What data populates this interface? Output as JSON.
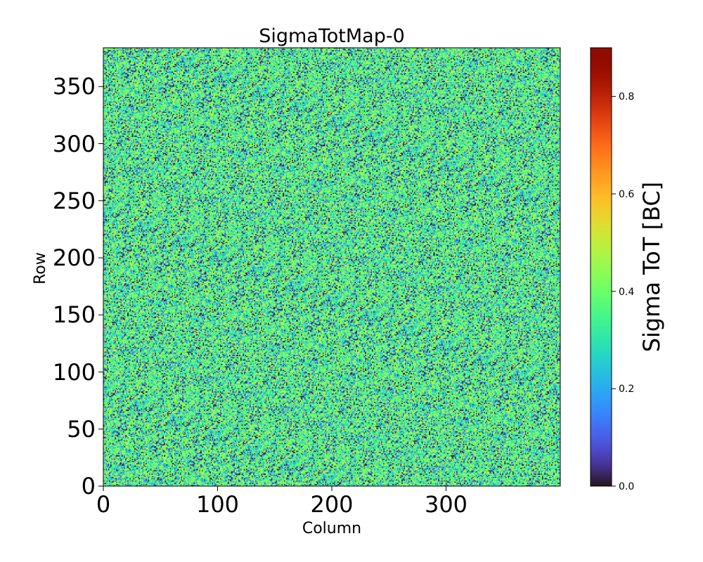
{
  "chart_data": {
    "type": "heatmap",
    "title": "SigmaTotMap-0",
    "xlabel": "Column",
    "ylabel": "Row",
    "xlim": [
      0,
      400
    ],
    "ylim": [
      0,
      384
    ],
    "x_ticks": [
      "0",
      "100",
      "200",
      "300"
    ],
    "y_ticks": [
      "0",
      "50",
      "100",
      "150",
      "200",
      "250",
      "300",
      "350"
    ],
    "grid": false,
    "colorbar": {
      "label": "Sigma ToT [BC]",
      "range": [
        0,
        0.9
      ],
      "ticks": [
        "0.0",
        "0.2",
        "0.4",
        "0.6",
        "0.8"
      ],
      "colormap": "turbo"
    },
    "value_distribution": {
      "typical_range": [
        0.0,
        0.5
      ],
      "dominant_value": 0.33,
      "note_visible": "noisy pixel map"
    }
  },
  "colors": {
    "frame": "#000000",
    "background": "#ffffff"
  }
}
